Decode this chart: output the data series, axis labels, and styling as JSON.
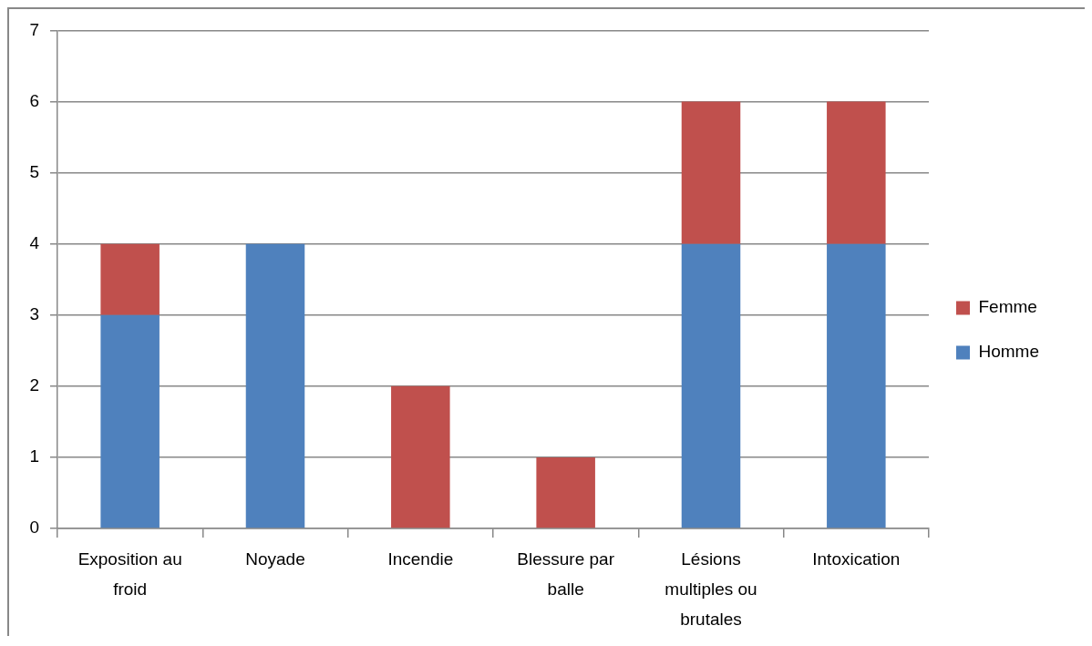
{
  "chart_data": {
    "type": "bar",
    "categories": [
      "Exposition au froid",
      "Noyade",
      "Incendie",
      "Blessure par balle",
      "Lésions multiples ou brutales",
      "Intoxication"
    ],
    "series": [
      {
        "name": "Homme",
        "color": "#4f81bd",
        "values": [
          3,
          4,
          0,
          0,
          4,
          4
        ]
      },
      {
        "name": "Femme",
        "color": "#c0504d",
        "values": [
          1,
          0,
          2,
          1,
          2,
          2
        ]
      }
    ],
    "stacked": true,
    "ylim": [
      0,
      7
    ],
    "yticks": [
      0,
      1,
      2,
      3,
      4,
      5,
      6,
      7
    ],
    "grid": "y",
    "legend": "right"
  }
}
